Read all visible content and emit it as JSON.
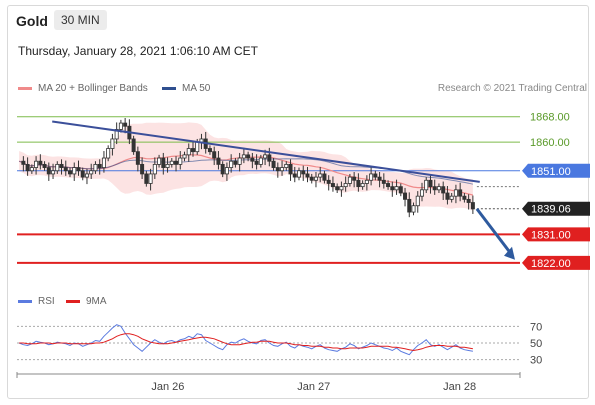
{
  "header": {
    "instrument": "Gold",
    "timeframe": "30 MIN",
    "timestamp": "Thursday, January 28, 2021 1:06:10 AM CET"
  },
  "legend": {
    "ma20": "MA 20 + Bollinger Bands",
    "ma50": "MA 50",
    "credit": "Research © 2021 Trading Central",
    "rsi": "RSI",
    "ma9": "9MA"
  },
  "colors": {
    "ma20": "#f08a8a",
    "band": "#fbd9d9",
    "ma50": "#2f4f8f",
    "trend": "#3b4f9a",
    "resistance_green": "#7dbb4a",
    "level_blue": "#4a78e0",
    "support_red": "#e02020",
    "rsi": "#5b7be0",
    "ma9": "#e02020",
    "up": "#ffffff",
    "down": "#333333"
  },
  "chart_data": {
    "type": "line",
    "price_range": [
      1816,
      1872
    ],
    "levels": [
      {
        "value": 1868.0,
        "label": "1868.00",
        "kind": "resistance_green"
      },
      {
        "value": 1860.0,
        "label": "1860.00",
        "kind": "resistance_green"
      },
      {
        "value": 1851.0,
        "label": "1851.00",
        "kind": "level_blue"
      },
      {
        "value": 1839.06,
        "label": "1839.06",
        "kind": "current"
      },
      {
        "value": 1831.0,
        "label": "1831.00",
        "kind": "support_red"
      },
      {
        "value": 1822.0,
        "label": "1822.00",
        "kind": "support_red"
      }
    ],
    "x_labels": [
      "Jan 26",
      "Jan 27",
      "Jan 28"
    ],
    "x_label_positions": [
      0.3,
      0.59,
      0.88
    ],
    "close_series": [
      1854,
      1853,
      1851,
      1852,
      1854,
      1853,
      1852,
      1850,
      1851,
      1853,
      1852,
      1851,
      1850,
      1852,
      1851,
      1849,
      1850,
      1851,
      1853,
      1852,
      1855,
      1858,
      1861,
      1864,
      1866,
      1865,
      1861,
      1857,
      1853,
      1850,
      1847,
      1850,
      1853,
      1855,
      1852,
      1853,
      1854,
      1853,
      1855,
      1856,
      1858,
      1857,
      1860,
      1861,
      1858,
      1857,
      1855,
      1853,
      1850,
      1852,
      1854,
      1853,
      1855,
      1856,
      1855,
      1854,
      1853,
      1855,
      1856,
      1854,
      1852,
      1851,
      1852,
      1853,
      1850,
      1849,
      1851,
      1850,
      1849,
      1848,
      1849,
      1850,
      1848,
      1847,
      1846,
      1845,
      1846,
      1847,
      1849,
      1848,
      1846,
      1847,
      1848,
      1850,
      1849,
      1848,
      1847,
      1846,
      1845,
      1846,
      1844,
      1842,
      1838,
      1840,
      1843,
      1845,
      1848,
      1846,
      1845,
      1846,
      1844,
      1842,
      1843,
      1845,
      1843,
      1842,
      1841,
      1839
    ],
    "trendline": {
      "start": [
        0.07,
        1866.5
      ],
      "end": [
        0.92,
        1847.5
      ]
    },
    "forecast_arrow": {
      "from": 1839,
      "to": 1823
    },
    "rsi": {
      "range": [
        20,
        80
      ],
      "ticks": [
        70,
        50,
        30
      ],
      "rsi_values": [
        50,
        48,
        47,
        49,
        52,
        51,
        50,
        48,
        49,
        51,
        50,
        49,
        47,
        50,
        49,
        46,
        48,
        50,
        53,
        52,
        58,
        63,
        68,
        72,
        70,
        62,
        55,
        48,
        44,
        40,
        45,
        50,
        54,
        51,
        49,
        52,
        53,
        51,
        54,
        55,
        58,
        56,
        61,
        60,
        53,
        50,
        47,
        44,
        42,
        48,
        51,
        50,
        53,
        55,
        52,
        50,
        49,
        53,
        54,
        50,
        47,
        46,
        49,
        51,
        46,
        44,
        48,
        46,
        45,
        43,
        46,
        48,
        44,
        42,
        41,
        40,
        43,
        45,
        49,
        47,
        43,
        45,
        47,
        50,
        48,
        46,
        44,
        43,
        41,
        44,
        40,
        38,
        36,
        42,
        47,
        50,
        54,
        48,
        46,
        48,
        45,
        42,
        45,
        48,
        44,
        42,
        41,
        40
      ],
      "ma9_values": [
        50,
        50,
        49,
        49,
        49,
        50,
        50,
        50,
        49,
        50,
        50,
        50,
        49,
        49,
        49,
        49,
        49,
        49,
        50,
        50,
        51,
        53,
        55,
        58,
        60,
        61,
        61,
        60,
        58,
        55,
        53,
        51,
        50,
        49,
        49,
        49,
        50,
        51,
        52,
        53,
        54,
        55,
        56,
        57,
        57,
        56,
        55,
        53,
        51,
        49,
        48,
        48,
        48,
        49,
        50,
        51,
        51,
        52,
        52,
        52,
        51,
        50,
        50,
        50,
        49,
        48,
        48,
        47,
        47,
        46,
        46,
        46,
        45,
        45,
        44,
        44,
        43,
        43,
        44,
        44,
        44,
        44,
        45,
        46,
        46,
        46,
        46,
        46,
        45,
        45,
        44,
        43,
        42,
        41,
        42,
        43,
        45,
        46,
        47,
        47,
        47,
        46,
        46,
        46,
        45,
        45,
        44,
        43
      ]
    }
  }
}
